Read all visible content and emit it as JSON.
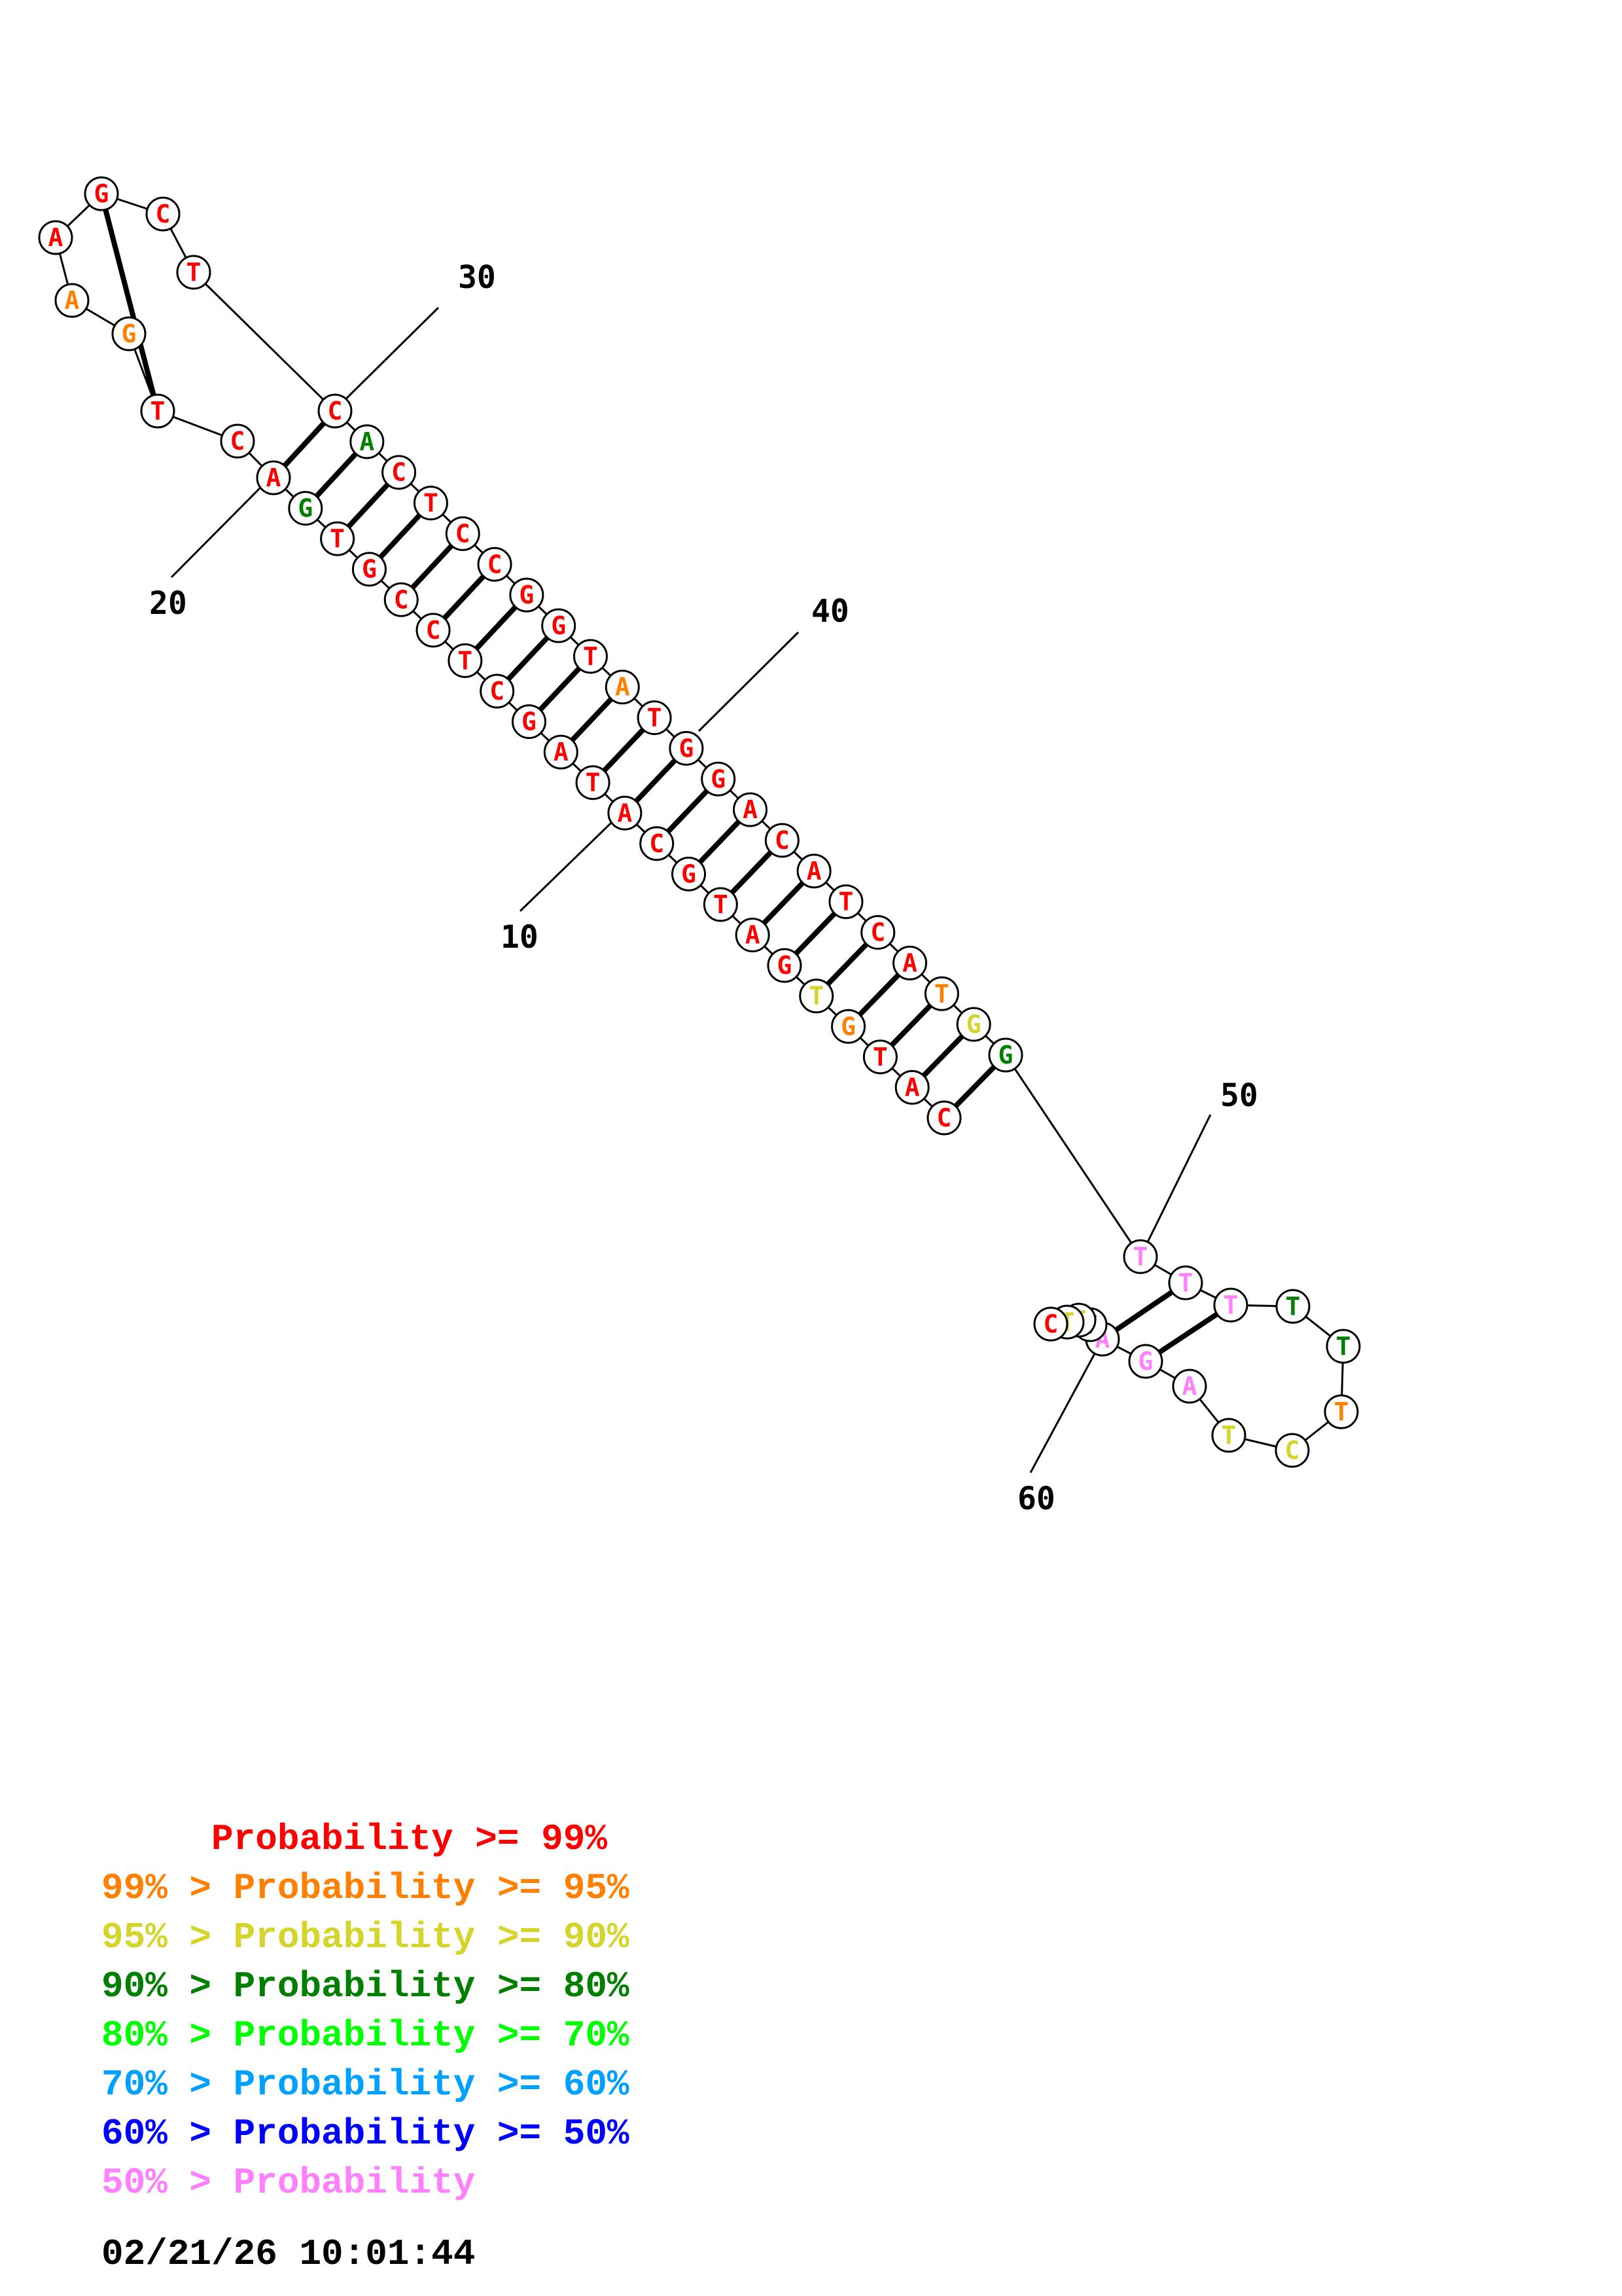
{
  "colors": {
    "c99": "#ff0000",
    "c95": "#ff8000",
    "c90": "#d4d42a",
    "c80": "#007f00",
    "c70": "#00ff00",
    "c60": "#00a0ff",
    "c50": "#0000ff",
    "low": "#ff80ff",
    "black": "#000000"
  },
  "sequence": [
    {
      "n": 1,
      "base": "C",
      "color": "c99"
    },
    {
      "n": 2,
      "base": "A",
      "color": "c99"
    },
    {
      "n": 3,
      "base": "T",
      "color": "c99"
    },
    {
      "n": 4,
      "base": "G",
      "color": "c95"
    },
    {
      "n": 5,
      "base": "T",
      "color": "c90"
    },
    {
      "n": 6,
      "base": "G",
      "color": "c99"
    },
    {
      "n": 7,
      "base": "A",
      "color": "c99"
    },
    {
      "n": 8,
      "base": "T",
      "color": "c99"
    },
    {
      "n": 9,
      "base": "G",
      "color": "c99"
    },
    {
      "n": 10,
      "base": "C",
      "color": "c99"
    },
    {
      "n": 11,
      "base": "A",
      "color": "c99"
    },
    {
      "n": 12,
      "base": "T",
      "color": "c99"
    },
    {
      "n": 13,
      "base": "A",
      "color": "c99"
    },
    {
      "n": 14,
      "base": "G",
      "color": "c99"
    },
    {
      "n": 15,
      "base": "C",
      "color": "c99"
    },
    {
      "n": 16,
      "base": "T",
      "color": "c99"
    },
    {
      "n": 17,
      "base": "C",
      "color": "c99"
    },
    {
      "n": 18,
      "base": "C",
      "color": "c99"
    },
    {
      "n": 19,
      "base": "G",
      "color": "c99"
    },
    {
      "n": 20,
      "base": "T",
      "color": "c99"
    },
    {
      "n": 21,
      "base": "G",
      "color": "c80"
    },
    {
      "n": 22,
      "base": "A",
      "color": "c99"
    },
    {
      "n": 23,
      "base": "C",
      "color": "c99"
    },
    {
      "n": 24,
      "base": "T",
      "color": "c99"
    },
    {
      "n": 25,
      "base": "G",
      "color": "c95"
    },
    {
      "n": 26,
      "base": "A",
      "color": "c95"
    },
    {
      "n": 27,
      "base": "A",
      "color": "c99"
    },
    {
      "n": 28,
      "base": "G",
      "color": "c99"
    },
    {
      "n": 29,
      "base": "C",
      "color": "c99"
    },
    {
      "n": 30,
      "base": "T",
      "color": "c99"
    },
    {
      "n": 31,
      "base": "C",
      "color": "c99"
    },
    {
      "n": 32,
      "base": "A",
      "color": "c80"
    },
    {
      "n": 33,
      "base": "C",
      "color": "c99"
    },
    {
      "n": 34,
      "base": "T",
      "color": "c99"
    },
    {
      "n": 35,
      "base": "C",
      "color": "c99"
    },
    {
      "n": 36,
      "base": "C",
      "color": "c99"
    },
    {
      "n": 37,
      "base": "G",
      "color": "c99"
    },
    {
      "n": 38,
      "base": "G",
      "color": "c99"
    },
    {
      "n": 39,
      "base": "T",
      "color": "c99"
    },
    {
      "n": 40,
      "base": "A",
      "color": "c95"
    },
    {
      "n": 41,
      "base": "T",
      "color": "c99"
    },
    {
      "n": 42,
      "base": "G",
      "color": "c99"
    },
    {
      "n": 43,
      "base": "G",
      "color": "c99"
    },
    {
      "n": 44,
      "base": "A",
      "color": "c99"
    },
    {
      "n": 45,
      "base": "C",
      "color": "c99"
    },
    {
      "n": 46,
      "base": "A",
      "color": "c99"
    },
    {
      "n": 47,
      "base": "T",
      "color": "c99"
    },
    {
      "n": 48,
      "base": "C",
      "color": "c99"
    },
    {
      "n": 49,
      "base": "A",
      "color": "c99"
    },
    {
      "n": 50,
      "base": "T",
      "color": "c95"
    },
    {
      "n": 51,
      "base": "G",
      "color": "c90"
    },
    {
      "n": 52,
      "base": "G",
      "color": "c80"
    },
    {
      "n": 53,
      "base": "T",
      "color": "low"
    },
    {
      "n": 54,
      "base": "T",
      "color": "low"
    },
    {
      "n": 55,
      "base": "T",
      "color": "low"
    },
    {
      "n": 56,
      "base": "T",
      "color": "c80"
    },
    {
      "n": 57,
      "base": "T",
      "color": "c80"
    },
    {
      "n": 58,
      "base": "T",
      "color": "c95"
    },
    {
      "n": 59,
      "base": "C",
      "color": "c90"
    },
    {
      "n": 60,
      "base": "T",
      "color": "c90"
    },
    {
      "n": 61,
      "base": "A",
      "color": "low"
    },
    {
      "n": 62,
      "base": "G",
      "color": "low"
    },
    {
      "n": 63,
      "base": "A",
      "color": "low"
    },
    {
      "n": 64,
      "base": "T",
      "color": "c99"
    },
    {
      "n": 65,
      "base": "T",
      "color": "c90"
    },
    {
      "n": 66,
      "base": "T",
      "color": "c90"
    },
    {
      "n": 67,
      "base": "C",
      "color": "c99"
    }
  ],
  "pairs": [
    [
      1,
      52
    ],
    [
      2,
      51
    ],
    [
      3,
      50
    ],
    [
      4,
      49
    ],
    [
      5,
      48
    ],
    [
      6,
      47
    ],
    [
      7,
      46
    ],
    [
      8,
      45
    ],
    [
      9,
      44
    ],
    [
      10,
      43
    ],
    [
      11,
      42
    ],
    [
      12,
      41
    ],
    [
      13,
      40
    ],
    [
      14,
      39
    ],
    [
      15,
      38
    ],
    [
      16,
      37
    ],
    [
      17,
      36
    ],
    [
      18,
      35
    ],
    [
      19,
      34
    ],
    [
      20,
      33
    ],
    [
      21,
      32
    ],
    [
      22,
      31
    ],
    [
      24,
      28
    ],
    [
      54,
      63
    ],
    [
      55,
      62
    ]
  ],
  "position_labels": [
    "10",
    "20",
    "30",
    "40",
    "50",
    "60"
  ],
  "legend": [
    {
      "text": "     Probability >= 99%",
      "color": "c99"
    },
    {
      "text": "99% > Probability >= 95%",
      "color": "c95"
    },
    {
      "text": "95% > Probability >= 90%",
      "color": "c90"
    },
    {
      "text": "90% > Probability >= 80%",
      "color": "c80"
    },
    {
      "text": "80% > Probability >= 70%",
      "color": "c70"
    },
    {
      "text": "70% > Probability >= 60%",
      "color": "c60"
    },
    {
      "text": "60% > Probability >= 50%",
      "color": "c50"
    },
    {
      "text": "50% > Probability",
      "color": "low"
    }
  ],
  "timestamp": "02/21/26 10:01:44"
}
